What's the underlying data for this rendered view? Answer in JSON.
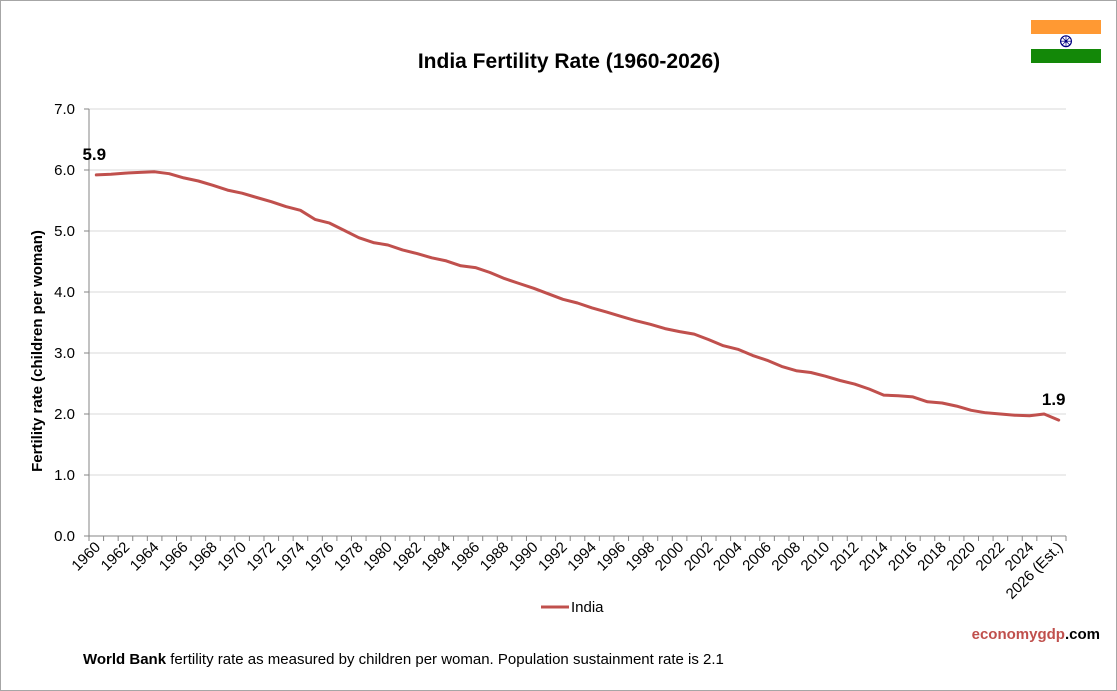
{
  "colors": {
    "series": "#c0504d",
    "grid": "#d9d9d9",
    "axis": "#868686",
    "credit_accent": "#c0504d",
    "flag_saffron": "#ff9933",
    "flag_white": "#ffffff",
    "flag_green": "#138808",
    "flag_chakra": "#000080"
  },
  "flag": {
    "icon": "india-flag-icon"
  },
  "footer": {
    "note_bold": "World Bank",
    "note_rest": " fertility rate as measured by children per woman.  Population sustainment rate is 2.1",
    "credit_part1": "economy",
    "credit_part2": "gdp",
    "credit_part3": ".com"
  },
  "chart_data": {
    "type": "line",
    "title": "India Fertility Rate (1960-2026)",
    "xlabel": "",
    "ylabel": "Fertility rate (children per woman)",
    "ylim": [
      0,
      7
    ],
    "yticks": [
      "0.0",
      "1.0",
      "2.0",
      "3.0",
      "4.0",
      "5.0",
      "6.0",
      "7.0"
    ],
    "grid": true,
    "legend_position": "bottom",
    "categories": [
      "1960",
      "1961",
      "1962",
      "1963",
      "1964",
      "1965",
      "1966",
      "1967",
      "1968",
      "1969",
      "1970",
      "1971",
      "1972",
      "1973",
      "1974",
      "1975",
      "1976",
      "1977",
      "1978",
      "1979",
      "1980",
      "1981",
      "1982",
      "1983",
      "1984",
      "1985",
      "1986",
      "1987",
      "1988",
      "1989",
      "1990",
      "1991",
      "1992",
      "1993",
      "1994",
      "1995",
      "1996",
      "1997",
      "1998",
      "1999",
      "2000",
      "2001",
      "2002",
      "2003",
      "2004",
      "2005",
      "2006",
      "2007",
      "2008",
      "2009",
      "2010",
      "2011",
      "2012",
      "2013",
      "2014",
      "2015",
      "2016",
      "2017",
      "2018",
      "2019",
      "2020",
      "2021",
      "2022",
      "2023",
      "2024",
      "2025",
      "2026 (Est.)"
    ],
    "tick_labels": [
      "1960",
      "1962",
      "1964",
      "1966",
      "1968",
      "1970",
      "1972",
      "1974",
      "1976",
      "1978",
      "1980",
      "1982",
      "1984",
      "1986",
      "1988",
      "1990",
      "1992",
      "1994",
      "1996",
      "1998",
      "2000",
      "2002",
      "2004",
      "2006",
      "2008",
      "2010",
      "2012",
      "2014",
      "2016",
      "2018",
      "2020",
      "2022",
      "2024",
      "2026 (Est.)"
    ],
    "series": [
      {
        "name": "India",
        "values": [
          5.92,
          5.93,
          5.95,
          5.96,
          5.97,
          5.94,
          5.87,
          5.82,
          5.75,
          5.67,
          5.62,
          5.55,
          5.48,
          5.4,
          5.34,
          5.19,
          5.13,
          5.01,
          4.89,
          4.81,
          4.77,
          4.69,
          4.63,
          4.56,
          4.51,
          4.43,
          4.4,
          4.32,
          4.22,
          4.14,
          4.06,
          3.97,
          3.88,
          3.82,
          3.74,
          3.67,
          3.6,
          3.53,
          3.47,
          3.4,
          3.35,
          3.31,
          3.22,
          3.12,
          3.06,
          2.96,
          2.88,
          2.78,
          2.71,
          2.68,
          2.62,
          2.55,
          2.49,
          2.41,
          2.31,
          2.3,
          2.28,
          2.2,
          2.18,
          2.13,
          2.06,
          2.02,
          2.0,
          1.98,
          1.97,
          2.0,
          1.9
        ]
      }
    ],
    "annotations": [
      {
        "label": "5.9",
        "point": "first"
      },
      {
        "label": "1.9",
        "point": "last"
      }
    ]
  }
}
